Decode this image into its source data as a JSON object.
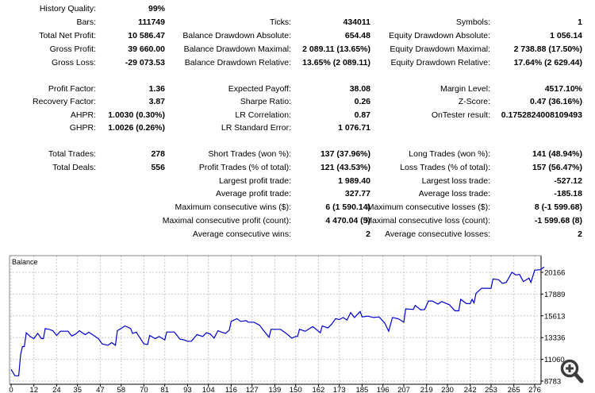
{
  "stats": {
    "sections": [
      [
        [
          [
            "History Quality:",
            "99%"
          ],
          null,
          null
        ],
        [
          [
            "Bars:",
            "111749"
          ],
          [
            "Ticks:",
            "434011"
          ],
          [
            "Symbols:",
            "1"
          ]
        ],
        [
          [
            "Total Net Profit:",
            "10 586.47"
          ],
          [
            "Balance Drawdown Absolute:",
            "654.48"
          ],
          [
            "Equity Drawdown Absolute:",
            "1 056.14"
          ]
        ],
        [
          [
            "Gross Profit:",
            "39 660.00"
          ],
          [
            "Balance Drawdown Maximal:",
            "2 089.11 (13.65%)"
          ],
          [
            "Equity Drawdown Maximal:",
            "2 738.88 (17.50%)"
          ]
        ],
        [
          [
            "Gross Loss:",
            "-29 073.53"
          ],
          [
            "Balance Drawdown Relative:",
            "13.65% (2 089.11)"
          ],
          [
            "Equity Drawdown Relative:",
            "17.64% (2 629.44)"
          ]
        ]
      ],
      [
        [
          [
            "Profit Factor:",
            "1.36"
          ],
          [
            "Expected Payoff:",
            "38.08"
          ],
          [
            "Margin Level:",
            "4517.10%"
          ]
        ],
        [
          [
            "Recovery Factor:",
            "3.87"
          ],
          [
            "Sharpe Ratio:",
            "0.26"
          ],
          [
            "Z-Score:",
            "0.47 (36.16%)"
          ]
        ],
        [
          [
            "AHPR:",
            "1.0030 (0.30%)"
          ],
          [
            "LR Correlation:",
            "0.87"
          ],
          [
            "OnTester result:",
            "0.1752824008109493"
          ]
        ],
        [
          [
            "GHPR:",
            "1.0026 (0.26%)"
          ],
          [
            "LR Standard Error:",
            "1 076.71"
          ],
          null
        ]
      ],
      [
        [
          [
            "Total Trades:",
            "278"
          ],
          [
            "Short Trades (won %):",
            "137 (37.96%)"
          ],
          [
            "Long Trades (won %):",
            "141 (48.94%)"
          ]
        ],
        [
          [
            "Total Deals:",
            "556"
          ],
          [
            "Profit Trades (% of total):",
            "121 (43.53%)"
          ],
          [
            "Loss Trades (% of total):",
            "157 (56.47%)"
          ]
        ],
        [
          null,
          [
            "Largest profit trade:",
            "1 989.40"
          ],
          [
            "Largest loss trade:",
            "-527.12"
          ]
        ],
        [
          null,
          [
            "Average profit trade:",
            "327.77"
          ],
          [
            "Average loss trade:",
            "-185.18"
          ]
        ],
        [
          null,
          [
            "Maximum consecutive wins ($):",
            "6 (1 590.14)"
          ],
          [
            "Maximum consecutive losses ($):",
            "8 (-1 599.68)"
          ]
        ],
        [
          null,
          [
            "Maximal consecutive profit (count):",
            "4 470.04 (5)"
          ],
          [
            "Maximal consecutive loss (count):",
            "-1 599.68 (8)"
          ]
        ],
        [
          null,
          [
            "Average consecutive wins:",
            "2"
          ],
          [
            "Average consecutive losses:",
            "2"
          ]
        ]
      ]
    ]
  },
  "chart_data": {
    "type": "line",
    "title": "Balance",
    "line_color": "#0000cc",
    "xlim": [
      0,
      281
    ],
    "ylim": [
      8783,
      20720
    ],
    "x_ticks": [
      "0",
      "12",
      "24",
      "35",
      "47",
      "58",
      "70",
      "81",
      "93",
      "104",
      "116",
      "127",
      "139",
      "150",
      "162",
      "173",
      "185",
      "196",
      "207",
      "219",
      "230",
      "242",
      "253",
      "265",
      "276"
    ],
    "y_ticks": [
      "20166",
      "17889",
      "15613",
      "13336",
      "11060",
      "8783"
    ],
    "series": [
      {
        "name": "Balance",
        "points": [
          [
            0,
            10033
          ],
          [
            2,
            9340
          ],
          [
            4,
            9340
          ],
          [
            5,
            11560
          ],
          [
            6,
            12400
          ],
          [
            7,
            12400
          ],
          [
            8,
            13840
          ],
          [
            10,
            13450
          ],
          [
            12,
            13230
          ],
          [
            14,
            13780
          ],
          [
            16,
            13230
          ],
          [
            17,
            13230
          ],
          [
            18,
            14280
          ],
          [
            20,
            14200
          ],
          [
            22,
            14060
          ],
          [
            24,
            13560
          ],
          [
            26,
            14000
          ],
          [
            30,
            14000
          ],
          [
            32,
            13500
          ],
          [
            34,
            13700
          ],
          [
            36,
            14060
          ],
          [
            39,
            13640
          ],
          [
            41,
            13890
          ],
          [
            44,
            13500
          ],
          [
            46,
            13230
          ],
          [
            48,
            12670
          ],
          [
            51,
            12530
          ],
          [
            53,
            12810
          ],
          [
            55,
            12530
          ],
          [
            56,
            14060
          ],
          [
            58,
            14300
          ],
          [
            60,
            14560
          ],
          [
            63,
            14280
          ],
          [
            64,
            13780
          ],
          [
            66,
            13900
          ],
          [
            70,
            12670
          ],
          [
            72,
            12620
          ],
          [
            73,
            13560
          ],
          [
            76,
            13230
          ],
          [
            78,
            13450
          ],
          [
            81,
            13090
          ],
          [
            82,
            13920
          ],
          [
            86,
            13920
          ],
          [
            89,
            13170
          ],
          [
            91,
            13100
          ],
          [
            93,
            12950
          ],
          [
            95,
            12950
          ],
          [
            98,
            13640
          ],
          [
            101,
            13450
          ],
          [
            103,
            13840
          ],
          [
            105,
            13700
          ],
          [
            107,
            13280
          ],
          [
            109,
            14060
          ],
          [
            111,
            13900
          ],
          [
            113,
            13780
          ],
          [
            115,
            14120
          ],
          [
            116,
            15030
          ],
          [
            119,
            15310
          ],
          [
            121,
            15030
          ],
          [
            124,
            15110
          ],
          [
            125,
            14950
          ],
          [
            128,
            14950
          ],
          [
            131,
            14620
          ],
          [
            133,
            14100
          ],
          [
            136,
            13370
          ],
          [
            137,
            14200
          ],
          [
            142,
            14200
          ],
          [
            145,
            13780
          ],
          [
            148,
            13280
          ],
          [
            150,
            13450
          ],
          [
            151,
            13450
          ],
          [
            152,
            14200
          ],
          [
            155,
            14000
          ],
          [
            159,
            14480
          ],
          [
            163,
            13840
          ],
          [
            164,
            14560
          ],
          [
            167,
            14340
          ],
          [
            169,
            14750
          ],
          [
            171,
            15310
          ],
          [
            173,
            15220
          ],
          [
            175,
            15440
          ],
          [
            177,
            15170
          ],
          [
            179,
            15950
          ],
          [
            181,
            15440
          ],
          [
            184,
            16060
          ],
          [
            185,
            15500
          ],
          [
            188,
            15580
          ],
          [
            191,
            15440
          ],
          [
            194,
            15500
          ],
          [
            197,
            14840
          ],
          [
            199,
            14000
          ],
          [
            201,
            15440
          ],
          [
            204,
            15310
          ],
          [
            207,
            14950
          ],
          [
            208,
            16340
          ],
          [
            212,
            16280
          ],
          [
            213,
            16700
          ],
          [
            216,
            16230
          ],
          [
            218,
            16280
          ],
          [
            220,
            17170
          ],
          [
            222,
            17170
          ],
          [
            225,
            16840
          ],
          [
            227,
            17110
          ],
          [
            231,
            16780
          ],
          [
            234,
            16140
          ],
          [
            236,
            16140
          ],
          [
            237,
            17340
          ],
          [
            240,
            16890
          ],
          [
            242,
            16890
          ],
          [
            243,
            17340
          ],
          [
            244,
            16950
          ],
          [
            245,
            17950
          ],
          [
            248,
            18500
          ],
          [
            253,
            18500
          ],
          [
            254,
            19470
          ],
          [
            257,
            19390
          ],
          [
            259,
            19000
          ],
          [
            261,
            19110
          ],
          [
            264,
            20170
          ],
          [
            266,
            19890
          ],
          [
            268,
            19940
          ],
          [
            270,
            19190
          ],
          [
            273,
            19560
          ],
          [
            274,
            19110
          ],
          [
            276,
            20390
          ],
          [
            279,
            20440
          ],
          [
            281,
            20720
          ]
        ]
      }
    ]
  }
}
